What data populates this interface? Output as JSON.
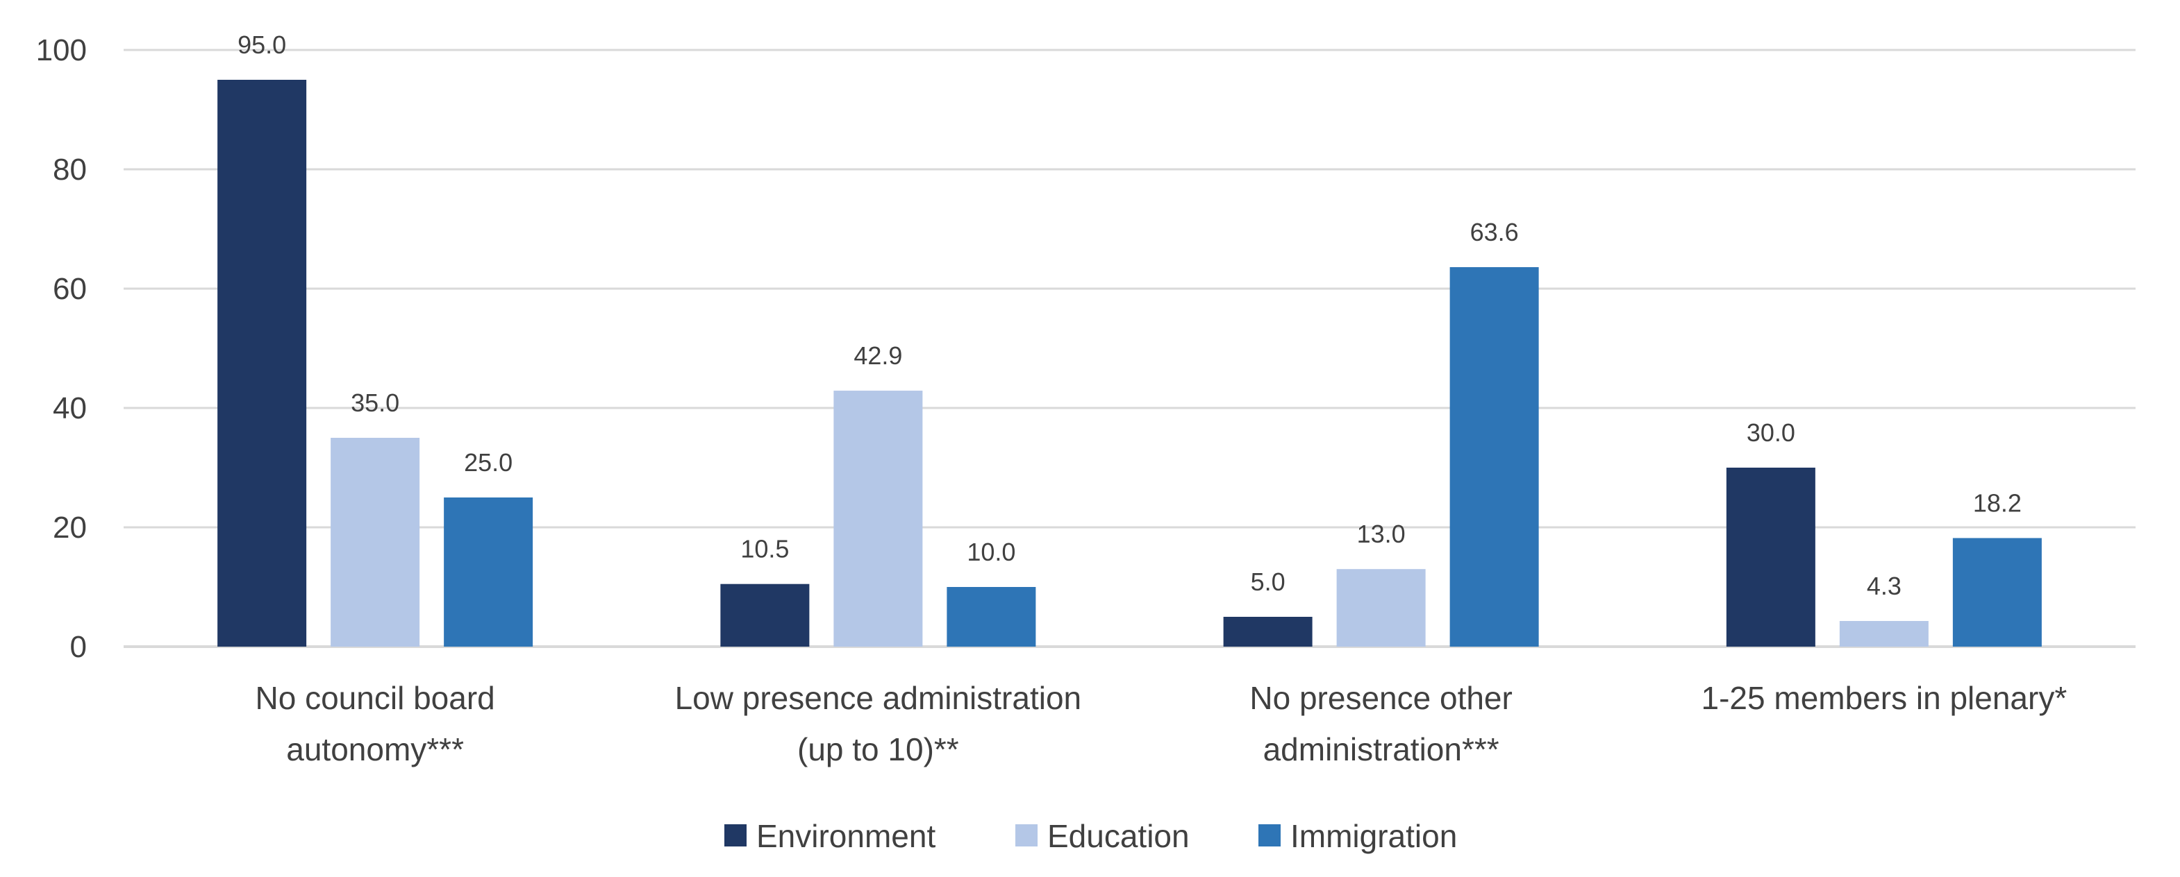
{
  "chart_data": {
    "type": "bar",
    "title": "",
    "xlabel": "",
    "ylabel": "",
    "ylim": [
      0,
      100
    ],
    "yticks": [
      0,
      20,
      40,
      60,
      80,
      100
    ],
    "grid": true,
    "legend_position": "bottom",
    "categories": [
      [
        "No council board",
        "autonomy***"
      ],
      [
        "Low presence administration",
        "(up to 10)**"
      ],
      [
        "No presence other",
        "administration***"
      ],
      [
        "1-25 members in plenary*"
      ]
    ],
    "series": [
      {
        "name": "Environment",
        "color": "#203864",
        "values": [
          95.0,
          10.5,
          5.0,
          30.0
        ],
        "labels": [
          "95.0",
          "10.5",
          "5.0",
          "30.0"
        ]
      },
      {
        "name": "Education",
        "color": "#B4C7E7",
        "values": [
          35.0,
          42.9,
          13.0,
          4.3
        ],
        "labels": [
          "35.0",
          "42.9",
          "13.0",
          "4.3"
        ]
      },
      {
        "name": "Immigration",
        "color": "#2E75B6",
        "values": [
          25.0,
          10.0,
          63.6,
          18.2
        ],
        "labels": [
          "25.0",
          "10.0",
          "63.6",
          "18.2"
        ]
      }
    ]
  }
}
